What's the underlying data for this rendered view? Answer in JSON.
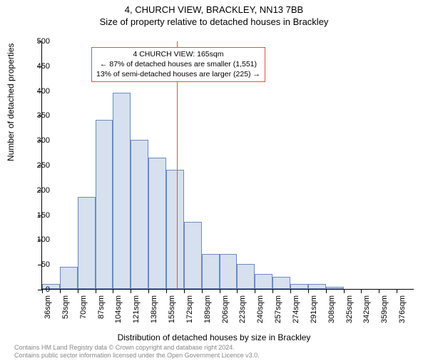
{
  "title_main": "4, CHURCH VIEW, BRACKLEY, NN13 7BB",
  "title_sub": "Size of property relative to detached houses in Brackley",
  "y_axis_title": "Number of detached properties",
  "x_axis_title": "Distribution of detached houses by size in Brackley",
  "chart": {
    "type": "histogram",
    "ylim": [
      0,
      500
    ],
    "ytick_step": 50,
    "x_start": 36,
    "x_step": 17,
    "x_count": 21,
    "x_unit": "sqm",
    "bar_fill": "#d6e0ef",
    "bar_stroke": "#6a8bbf",
    "grid_color": "#000000",
    "bars": [
      10,
      45,
      185,
      340,
      395,
      300,
      265,
      240,
      135,
      70,
      70,
      50,
      30,
      25,
      10,
      10,
      5,
      0,
      0,
      0,
      0
    ],
    "reference_line": {
      "x_value": 165,
      "color": "#d9534f"
    }
  },
  "annotation": {
    "lines": [
      "4 CHURCH VIEW: 165sqm",
      "← 87% of detached houses are smaller (1,551)",
      "13% of semi-detached houses are larger (225) →"
    ],
    "border_color": "#d9534f"
  },
  "copyright": {
    "line1": "Contains HM Land Registry data © Crown copyright and database right 2024.",
    "line2": "Contains public sector information licensed under the Open Government Licence v3.0."
  }
}
